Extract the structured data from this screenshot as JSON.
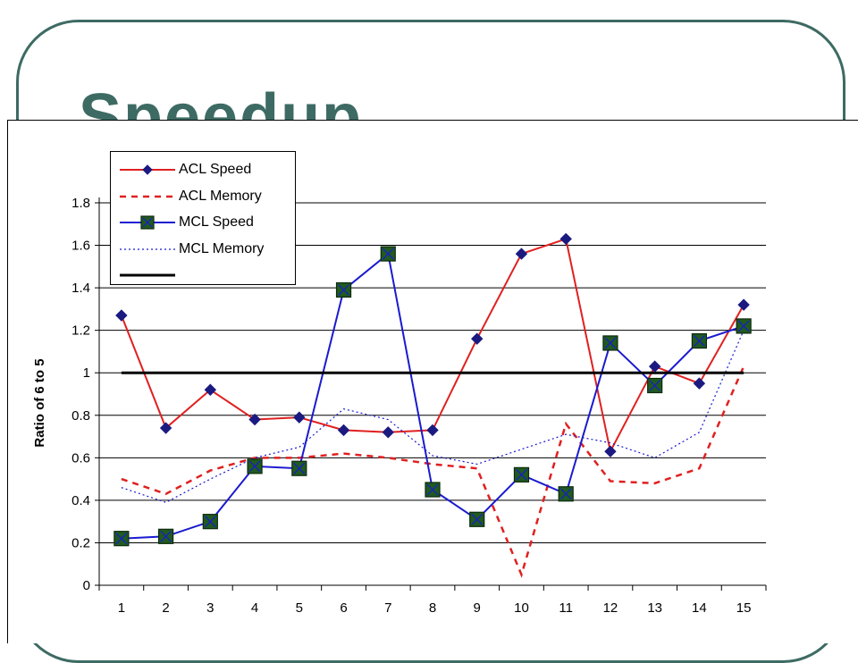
{
  "slide": {
    "title": "Speedup"
  },
  "colors": {
    "frame": "#3d6b63",
    "acl": "#e02020",
    "mcl": "#1a1ad0",
    "marker_diamond": "#1a1a80",
    "marker_square": "#1f5a1f",
    "baseline": "#000000"
  },
  "chart_data": {
    "type": "line",
    "x": [
      1,
      2,
      3,
      4,
      5,
      6,
      7,
      8,
      9,
      10,
      11,
      12,
      13,
      14,
      15
    ],
    "ylabel": "Ratio of 6 to 5",
    "xlabel": "",
    "ylim": [
      0,
      1.8
    ],
    "yticks": [
      "0",
      "0.2",
      "0.4",
      "0.6",
      "0.8",
      "1",
      "1.2",
      "1.4",
      "1.6",
      "1.8"
    ],
    "grid": "horizontal",
    "legend_position": "top-left",
    "series": [
      {
        "name": "ACL Speed",
        "style": "solid",
        "color": "#e02020",
        "marker": "diamond",
        "values": [
          1.27,
          0.74,
          0.92,
          0.78,
          0.79,
          0.73,
          0.72,
          0.73,
          1.16,
          1.56,
          1.63,
          0.63,
          1.03,
          0.95,
          1.32
        ]
      },
      {
        "name": "ACL Memory",
        "style": "dashed",
        "color": "#e02020",
        "marker": "none",
        "values": [
          0.5,
          0.43,
          0.54,
          0.6,
          0.6,
          0.62,
          0.6,
          0.57,
          0.55,
          0.05,
          0.76,
          0.49,
          0.48,
          0.55,
          1.03
        ]
      },
      {
        "name": "MCL Speed",
        "style": "solid",
        "color": "#1a1ad0",
        "marker": "square",
        "values": [
          0.22,
          0.23,
          0.3,
          0.56,
          0.55,
          1.39,
          1.56,
          0.45,
          0.31,
          0.52,
          0.43,
          1.14,
          0.94,
          1.15,
          1.22
        ]
      },
      {
        "name": "MCL Memory",
        "style": "dotted",
        "color": "#1a1ad0",
        "marker": "none",
        "values": [
          0.46,
          0.39,
          0.5,
          0.6,
          0.65,
          0.83,
          0.78,
          0.61,
          0.57,
          0.64,
          0.71,
          0.67,
          0.6,
          0.72,
          1.2
        ]
      },
      {
        "style": "solid",
        "color": "#000000",
        "marker": "none",
        "values": [
          1,
          1,
          1,
          1,
          1,
          1,
          1,
          1,
          1,
          1,
          1,
          1,
          1,
          1,
          1
        ]
      }
    ]
  }
}
